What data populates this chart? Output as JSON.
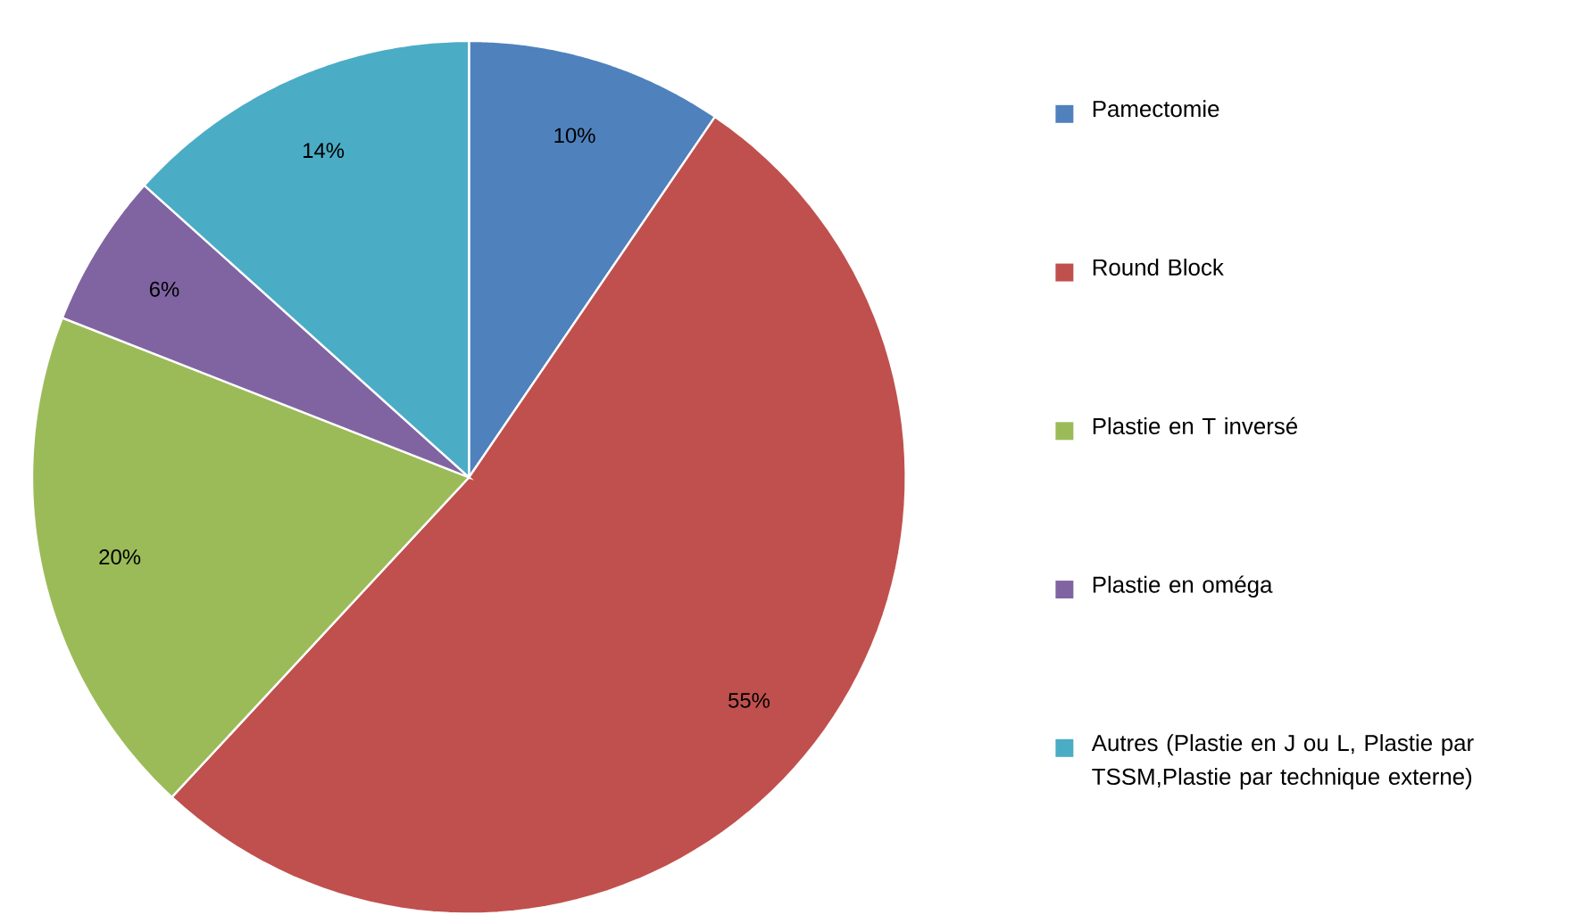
{
  "chart_data": {
    "type": "pie",
    "categories": [
      "Pamectomie",
      "Round Block",
      "Plastie en T inversé",
      "Plastie en oméga",
      "Autres (Plastie en J ou L, Plastie par TSSM,Plastie par technique externe)"
    ],
    "values": [
      10,
      55,
      20,
      6,
      14
    ],
    "value_labels": [
      "10%",
      "55%",
      "20%",
      "6%",
      "14%"
    ],
    "colors": [
      "#4f81bd",
      "#c0504d",
      "#9bbb59",
      "#8064a2",
      "#4bacc6"
    ],
    "legend": "right"
  }
}
